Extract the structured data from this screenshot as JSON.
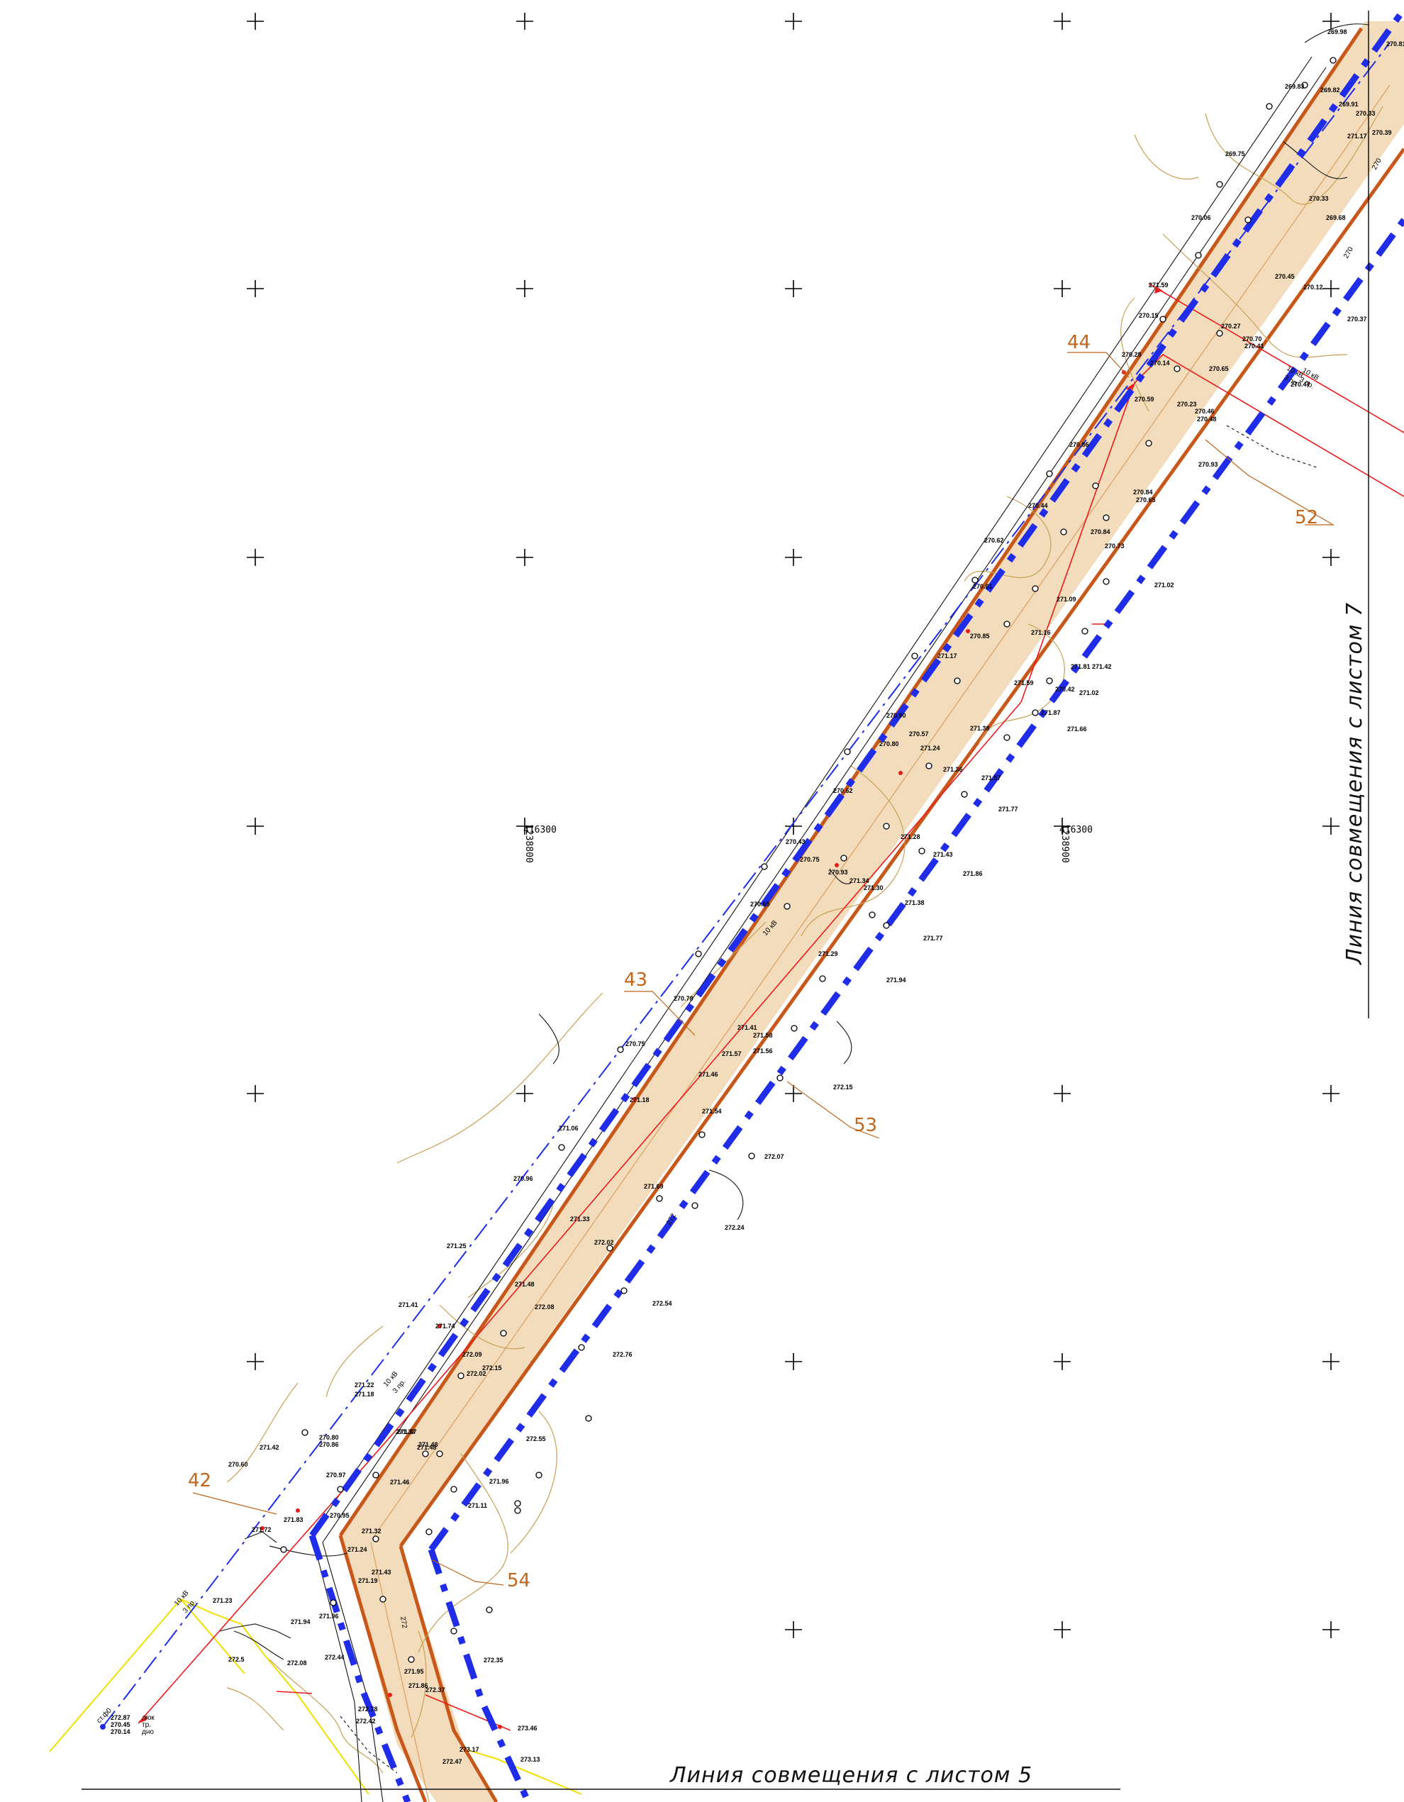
{
  "sheet": {
    "match_line_right": "Линия совмещения с листом 7",
    "match_line_bottom": "Линия совмещения с листом 5"
  },
  "grid_labels": {
    "left": {
      "easting": "416300",
      "northing": "1238800"
    },
    "right": {
      "easting": "416300",
      "northing": "1238900"
    }
  },
  "callouts": {
    "c42": "42",
    "c43": "43",
    "c44": "44",
    "c52": "52",
    "c53": "53",
    "c54": "54"
  },
  "line_labels": {
    "v1": "10 кВ",
    "p1": "3 пр.",
    "v2": "10 кВ",
    "p2": "3 пр.",
    "v3": "10 кВ",
    "p3": "3 пр.",
    "v4": "10 кВ",
    "p4": "3 пр.",
    "contour_270": "270",
    "contour_272": "272"
  },
  "manhole": {
    "label": "ст.ф0",
    "top_value": "272.87",
    "top_label": "люк",
    "pipe_value": "270.45",
    "pipe_label": "тр.",
    "bottom_value": "270.14",
    "bottom_label": "дно"
  },
  "colors": {
    "corridor_fill": "#f3dcbc",
    "boundary": "#1f2de8",
    "axis": "#c8581a",
    "power_line": "#e81c1c",
    "contour": "#c7a055",
    "callout": "#c0651a",
    "adjacent_line": "#f0e000"
  },
  "elevations": {
    "e1": "269.98",
    "e2": "270.81",
    "e3": "269.83",
    "e4": "269.82",
    "e5": "269.91",
    "e6": "270.33",
    "e7": "269.75",
    "e8": "271.17",
    "e9": "270.39",
    "e10": "270.06",
    "e11": "270.33",
    "e12": "269.68",
    "e13": "270.45",
    "e14": "270.12",
    "e15": "271.59",
    "e16": "270.15",
    "e17": "270.27",
    "e18": "270.37",
    "e19": "270.70",
    "e20": "270.41",
    "e21": "270.28",
    "e22": "270.14",
    "e23": "270.65",
    "e24": "270.47",
    "e25": "270.23",
    "e26": "270.46",
    "e27": "270.48",
    "e28": "270.59",
    "e29": "270.86",
    "e30": "270.84",
    "e31": "270.65",
    "e32": "270.44",
    "e33": "270.93",
    "e34": "270.62",
    "e35": "270.84",
    "e36": "270.73",
    "e37": "270.81",
    "e38": "271.02",
    "e39": "271.09",
    "e40": "270.85",
    "e41": "271.16",
    "e42": "271.17",
    "e43": "271.81",
    "e44": "271.42",
    "e45": "271.59",
    "e46": "271.02",
    "e47": "270.42",
    "e48": "271.87",
    "e49": "271.66",
    "e50": "271.38",
    "e51": "270.90",
    "e52": "270.57",
    "e53": "270.80",
    "e54": "271.24",
    "e55": "271.36",
    "e56": "271.57",
    "e57": "270.62",
    "e58": "271.28",
    "e59": "271.77",
    "e60": "270.43",
    "e61": "270.75",
    "e62": "270.93",
    "e63": "271.34",
    "e64": "271.30",
    "e65": "271.43",
    "e66": "271.86",
    "e67": "270.65",
    "e68": "271.38",
    "e69": "271.29",
    "e70": "271.77",
    "e71": "271.94",
    "e72": "270.78",
    "e73": "271.41",
    "e74": "271.58",
    "e75": "271.56",
    "e76": "270.75",
    "e77": "271.57",
    "e78": "271.46",
    "e79": "271.18",
    "e80": "271.54",
    "e81": "272.15",
    "e82": "271.06",
    "e83": "270.96",
    "e84": "271.69",
    "e85": "272.07",
    "e86": "271.33",
    "e87": "272.02",
    "e88": "272.24",
    "e89": "271.25",
    "e90": "271.48",
    "e91": "272.08",
    "e92": "272.54",
    "e93": "271.41",
    "e94": "271.74",
    "e95": "272.09",
    "e96": "272.15",
    "e97": "272.02",
    "e98": "272.76",
    "e99": "271.22",
    "e100": "271.18",
    "e101": "271.37",
    "e102": "271.42",
    "e103": "270.80",
    "e104": "270.86",
    "e105": "271.48",
    "e106": "272.55",
    "e107": "270.60",
    "e108": "270.97",
    "e109": "271.46",
    "e110": "271.96",
    "e111": "271.83",
    "e112": "270.95",
    "e113": "271.32",
    "e114": "271.24",
    "e115": "271.43",
    "e116": "271.19",
    "e117": "271.23",
    "e118": "271.94",
    "e119": "271.96",
    "e120": "272.5",
    "e121": "272.08",
    "e122": "272.44",
    "e123": "271.95",
    "e124": "271.86",
    "e125": "272.37",
    "e126": "272.78",
    "e127": "272.42",
    "e128": "272.47",
    "e129": "273.17",
    "e130": "273.46",
    "e131": "273.13",
    "e132": "271.72",
    "e133": "271.37",
    "e134": "271.48",
    "e135": "271.11",
    "e136": "272.35"
  }
}
